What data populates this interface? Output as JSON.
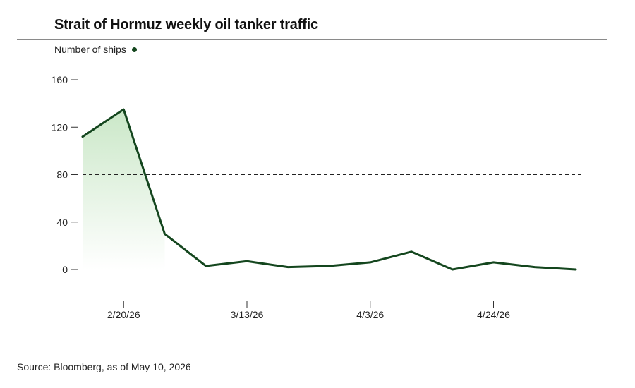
{
  "colors": {
    "line": "#14461e",
    "area_top": "#9fd49a",
    "axis": "#333333",
    "reference": "#222222"
  },
  "chart_data": {
    "type": "area",
    "title": "Strait of Hormuz weekly oil tanker traffic",
    "ylabel": "Number of ships",
    "source": "Source: Bloomberg, as of May 10, 2026",
    "ylim": [
      0,
      160
    ],
    "yticks": [
      0,
      40,
      80,
      120,
      160
    ],
    "x_tick_labels": [
      "2/20/26",
      "3/13/26",
      "4/3/26",
      "4/24/26"
    ],
    "x_tick_index": [
      1,
      4,
      7,
      10
    ],
    "reference_line": 80,
    "series": [
      {
        "values": [
          112,
          135,
          30,
          3,
          7,
          2,
          3,
          6,
          15,
          0,
          6,
          2,
          0
        ],
        "area_fill_points": 3
      }
    ]
  }
}
